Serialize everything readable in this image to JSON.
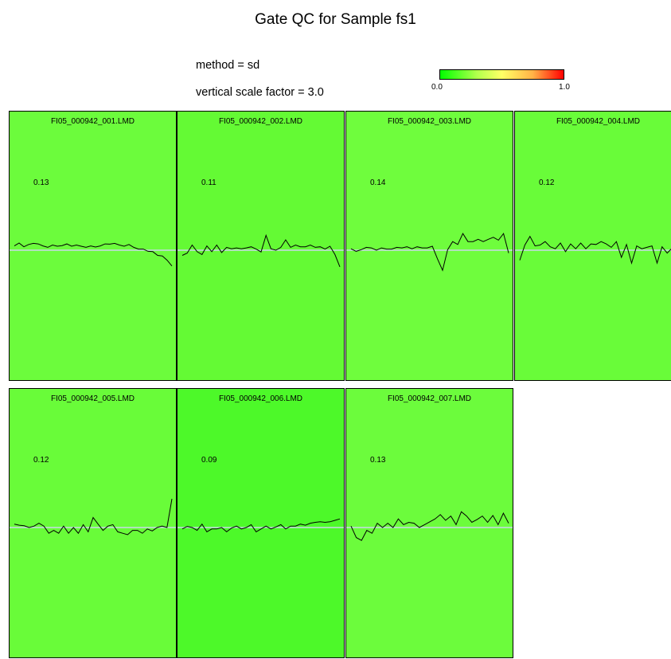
{
  "header": {
    "title": "Gate QC for Sample fs1",
    "method_text": "method = sd",
    "scale_text": "vertical scale factor = 3.0"
  },
  "legend": {
    "min_label": "0.0",
    "max_label": "1.0",
    "colors": [
      "#00ff00",
      "#ffff66",
      "#ff0000"
    ]
  },
  "chart_data": {
    "type": "line",
    "panels": [
      {
        "name": "FI05_000942_001.LMD",
        "score": "0.13",
        "fill": "#6cfc3c",
        "values": [
          0.15,
          0.25,
          0.12,
          0.2,
          0.24,
          0.22,
          0.15,
          0.1,
          0.18,
          0.14,
          0.16,
          0.22,
          0.14,
          0.18,
          0.14,
          0.1,
          0.15,
          0.11,
          0.15,
          0.22,
          0.21,
          0.24,
          0.18,
          0.14,
          0.2,
          0.1,
          0.04,
          0.04,
          -0.04,
          -0.05,
          -0.18,
          -0.2,
          -0.35,
          -0.55
        ]
      },
      {
        "name": "FI05_000942_002.LMD",
        "score": "0.11",
        "fill": "#64fa34",
        "values": [
          -0.18,
          -0.1,
          0.18,
          -0.05,
          -0.15,
          0.15,
          -0.05,
          0.18,
          -0.08,
          0.1,
          0.05,
          0.08,
          0.05,
          0.08,
          0.12,
          0.04,
          -0.06,
          0.52,
          0.05,
          0.0,
          0.1,
          0.36,
          0.1,
          0.18,
          0.12,
          0.12,
          0.18,
          0.1,
          0.12,
          0.04,
          0.14,
          -0.15,
          -0.58
        ]
      },
      {
        "name": "FI05_000942_003.LMD",
        "score": "0.14",
        "fill": "#6ffd3d",
        "values": [
          0.05,
          -0.04,
          0.02,
          0.1,
          0.08,
          0.0,
          0.08,
          0.04,
          0.04,
          0.1,
          0.08,
          0.12,
          0.05,
          0.12,
          0.08,
          0.08,
          0.14,
          -0.3,
          -0.7,
          0.02,
          0.3,
          0.2,
          0.58,
          0.3,
          0.3,
          0.38,
          0.3,
          0.38,
          0.45,
          0.35,
          0.58,
          -0.1
        ]
      },
      {
        "name": "FI05_000942_004.LMD",
        "score": "0.12",
        "fill": "#69fc39",
        "values": [
          -0.35,
          0.18,
          0.48,
          0.15,
          0.18,
          0.3,
          0.12,
          0.05,
          0.25,
          -0.05,
          0.22,
          0.05,
          0.25,
          0.05,
          0.22,
          0.2,
          0.3,
          0.22,
          0.1,
          0.3,
          -0.25,
          0.2,
          -0.45,
          0.15,
          0.05,
          0.1,
          0.15,
          -0.45,
          0.12,
          -0.1,
          0.08,
          -0.55
        ]
      },
      {
        "name": "FI05_000942_005.LMD",
        "score": "0.12",
        "fill": "#69fc39",
        "values": [
          0.12,
          0.08,
          0.06,
          0.0,
          0.05,
          0.15,
          0.05,
          -0.2,
          -0.1,
          -0.2,
          0.05,
          -0.2,
          0.0,
          -0.2,
          0.1,
          -0.15,
          0.35,
          0.12,
          -0.1,
          0.05,
          0.1,
          -0.15,
          -0.2,
          -0.25,
          -0.1,
          -0.1,
          -0.2,
          -0.05,
          -0.12,
          0.0,
          0.05,
          0.0,
          1.0
        ]
      },
      {
        "name": "FI05_000942_006.LMD",
        "score": "0.09",
        "fill": "#4df929",
        "values": [
          -0.05,
          0.04,
          0.0,
          -0.1,
          0.12,
          -0.15,
          -0.05,
          -0.05,
          0.0,
          -0.15,
          -0.02,
          0.05,
          -0.05,
          0.0,
          0.1,
          -0.15,
          -0.05,
          0.05,
          -0.05,
          0.02,
          0.1,
          -0.05,
          0.05,
          0.05,
          0.12,
          0.08,
          0.15,
          0.18,
          0.2,
          0.18,
          0.2,
          0.25,
          0.3
        ]
      },
      {
        "name": "FI05_000942_007.LMD",
        "score": "0.13",
        "fill": "#6cfc3c",
        "values": [
          0.05,
          -0.35,
          -0.45,
          -0.1,
          -0.2,
          0.15,
          0.0,
          0.15,
          0.0,
          0.3,
          0.1,
          0.18,
          0.15,
          0.0,
          0.1,
          0.2,
          0.3,
          0.45,
          0.25,
          0.4,
          0.1,
          0.55,
          0.4,
          0.18,
          0.28,
          0.4,
          0.18,
          0.42,
          0.1,
          0.5,
          0.15
        ]
      }
    ]
  }
}
